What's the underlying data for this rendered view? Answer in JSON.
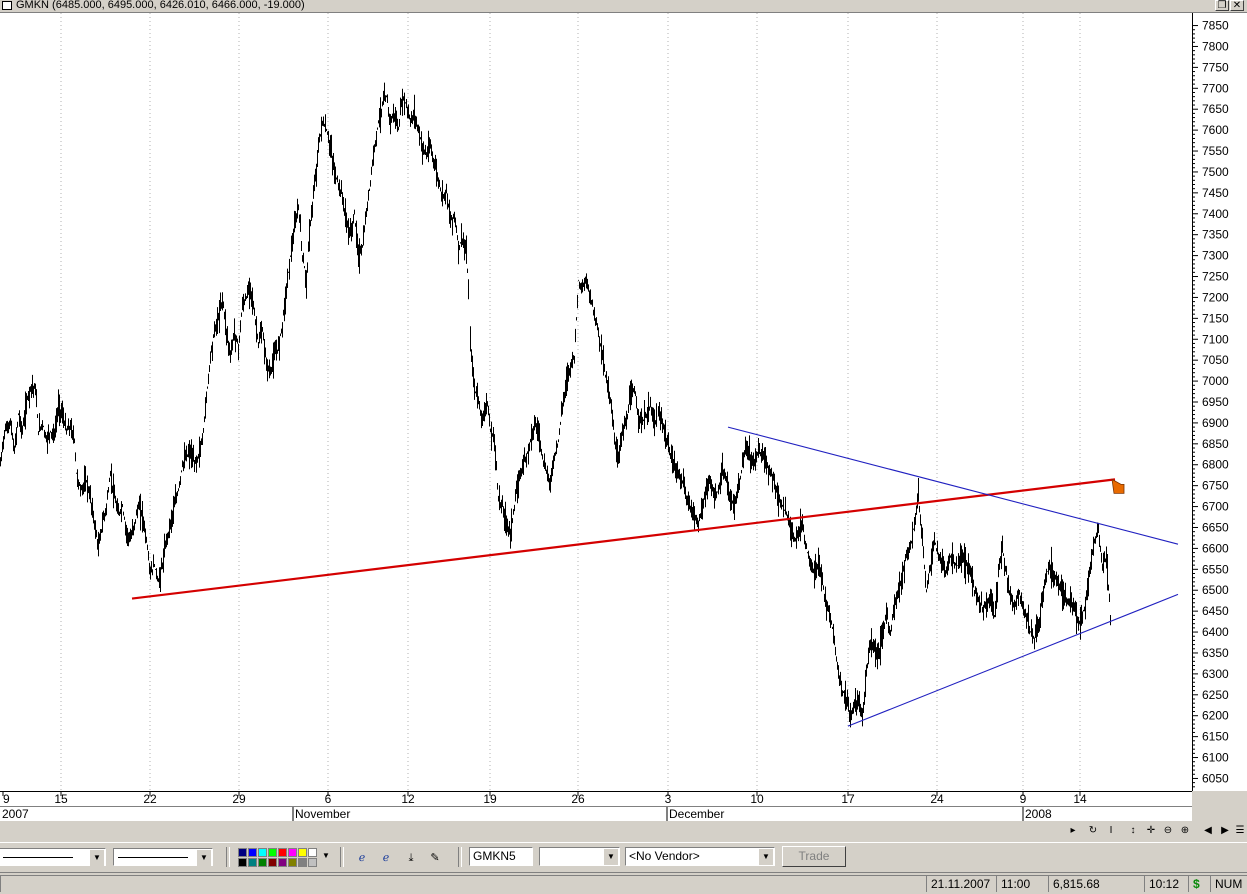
{
  "window": {
    "title": "GMKN (6485.000, 6495.000, 6426.010, 6466.000, -19.000)",
    "restore_glyph": "❐",
    "close_glyph": "✕"
  },
  "chart_data": {
    "type": "candlestick",
    "symbol": "GMKN",
    "ohlc_header": {
      "open": 6485.0,
      "high": 6495.0,
      "low": 6426.01,
      "close": 6466.0,
      "change": -19.0
    },
    "ylim": [
      6020,
      7880
    ],
    "y_ticks": [
      7850,
      7800,
      7750,
      7700,
      7650,
      7600,
      7550,
      7500,
      7450,
      7400,
      7350,
      7300,
      7250,
      7200,
      7150,
      7100,
      7050,
      7000,
      6950,
      6900,
      6850,
      6800,
      6750,
      6700,
      6650,
      6600,
      6550,
      6500,
      6450,
      6400,
      6350,
      6300,
      6250,
      6200,
      6150,
      6100,
      6050
    ],
    "x_tick_labels": [
      "9",
      "15",
      "22",
      "29",
      "6",
      "12",
      "19",
      "26",
      "3",
      "10",
      "17",
      "24",
      "9",
      "14"
    ],
    "x_group_labels": [
      "2007",
      "November",
      "December",
      "2008"
    ],
    "grid": "vertical dotted",
    "price_path": [
      [
        0,
        6800
      ],
      [
        4,
        6880
      ],
      [
        10,
        6900
      ],
      [
        14,
        6830
      ],
      [
        18,
        6920
      ],
      [
        22,
        6880
      ],
      [
        27,
        6960
      ],
      [
        31,
        6990
      ],
      [
        35,
        6980
      ],
      [
        38,
        6880
      ],
      [
        42,
        6900
      ],
      [
        46,
        6860
      ],
      [
        50,
        6880
      ],
      [
        54,
        6870
      ],
      [
        58,
        6940
      ],
      [
        62,
        6920
      ],
      [
        66,
        6880
      ],
      [
        70,
        6890
      ],
      [
        74,
        6860
      ],
      [
        76,
        6780
      ],
      [
        80,
        6740
      ],
      [
        86,
        6760
      ],
      [
        90,
        6720
      ],
      [
        94,
        6660
      ],
      [
        98,
        6600
      ],
      [
        102,
        6660
      ],
      [
        106,
        6700
      ],
      [
        110,
        6780
      ],
      [
        114,
        6720
      ],
      [
        118,
        6680
      ],
      [
        122,
        6700
      ],
      [
        126,
        6640
      ],
      [
        130,
        6620
      ],
      [
        134,
        6660
      ],
      [
        138,
        6700
      ],
      [
        142,
        6680
      ],
      [
        146,
        6620
      ],
      [
        150,
        6540
      ],
      [
        154,
        6560
      ],
      [
        158,
        6520
      ],
      [
        162,
        6560
      ],
      [
        166,
        6620
      ],
      [
        170,
        6660
      ],
      [
        174,
        6700
      ],
      [
        178,
        6740
      ],
      [
        182,
        6800
      ],
      [
        186,
        6820
      ],
      [
        190,
        6830
      ],
      [
        194,
        6800
      ],
      [
        198,
        6820
      ],
      [
        202,
        6860
      ],
      [
        206,
        6960
      ],
      [
        210,
        7060
      ],
      [
        214,
        7120
      ],
      [
        218,
        7150
      ],
      [
        222,
        7200
      ],
      [
        226,
        7120
      ],
      [
        230,
        7060
      ],
      [
        234,
        7120
      ],
      [
        238,
        7080
      ],
      [
        242,
        7180
      ],
      [
        246,
        7200
      ],
      [
        250,
        7230
      ],
      [
        254,
        7160
      ],
      [
        258,
        7090
      ],
      [
        262,
        7120
      ],
      [
        266,
        7040
      ],
      [
        270,
        7020
      ],
      [
        274,
        7060
      ],
      [
        278,
        7080
      ],
      [
        282,
        7140
      ],
      [
        286,
        7220
      ],
      [
        290,
        7300
      ],
      [
        294,
        7360
      ],
      [
        298,
        7420
      ],
      [
        302,
        7300
      ],
      [
        306,
        7240
      ],
      [
        310,
        7380
      ],
      [
        314,
        7460
      ],
      [
        318,
        7560
      ],
      [
        322,
        7620
      ],
      [
        326,
        7600
      ],
      [
        330,
        7560
      ],
      [
        334,
        7500
      ],
      [
        338,
        7470
      ],
      [
        342,
        7440
      ],
      [
        346,
        7380
      ],
      [
        350,
        7350
      ],
      [
        354,
        7400
      ],
      [
        358,
        7300
      ],
      [
        362,
        7320
      ],
      [
        366,
        7400
      ],
      [
        370,
        7480
      ],
      [
        374,
        7560
      ],
      [
        378,
        7620
      ],
      [
        382,
        7660
      ],
      [
        386,
        7680
      ],
      [
        390,
        7620
      ],
      [
        394,
        7640
      ],
      [
        398,
        7600
      ],
      [
        402,
        7680
      ],
      [
        406,
        7660
      ],
      [
        410,
        7620
      ],
      [
        414,
        7640
      ],
      [
        418,
        7600
      ],
      [
        422,
        7560
      ],
      [
        426,
        7540
      ],
      [
        430,
        7560
      ],
      [
        434,
        7520
      ],
      [
        438,
        7480
      ],
      [
        442,
        7440
      ],
      [
        446,
        7460
      ],
      [
        450,
        7380
      ],
      [
        454,
        7400
      ],
      [
        458,
        7320
      ],
      [
        462,
        7340
      ],
      [
        466,
        7300
      ],
      [
        468,
        7220
      ],
      [
        470,
        7090
      ],
      [
        474,
        6980
      ],
      [
        478,
        6960
      ],
      [
        482,
        6900
      ],
      [
        486,
        6960
      ],
      [
        490,
        6880
      ],
      [
        494,
        6860
      ],
      [
        498,
        6720
      ],
      [
        502,
        6700
      ],
      [
        506,
        6660
      ],
      [
        510,
        6640
      ],
      [
        514,
        6700
      ],
      [
        518,
        6760
      ],
      [
        522,
        6800
      ],
      [
        526,
        6820
      ],
      [
        530,
        6860
      ],
      [
        534,
        6900
      ],
      [
        538,
        6880
      ],
      [
        542,
        6820
      ],
      [
        546,
        6780
      ],
      [
        550,
        6760
      ],
      [
        554,
        6820
      ],
      [
        558,
        6860
      ],
      [
        562,
        6940
      ],
      [
        566,
        7000
      ],
      [
        570,
        7040
      ],
      [
        574,
        7060
      ],
      [
        578,
        7240
      ],
      [
        582,
        7220
      ],
      [
        586,
        7240
      ],
      [
        590,
        7200
      ],
      [
        594,
        7160
      ],
      [
        598,
        7120
      ],
      [
        602,
        7060
      ],
      [
        606,
        7000
      ],
      [
        610,
        6960
      ],
      [
        614,
        6860
      ],
      [
        618,
        6820
      ],
      [
        622,
        6880
      ],
      [
        626,
        6900
      ],
      [
        630,
        6960
      ],
      [
        634,
        6980
      ],
      [
        638,
        6920
      ],
      [
        642,
        6900
      ],
      [
        646,
        6920
      ],
      [
        650,
        6940
      ],
      [
        654,
        6900
      ],
      [
        658,
        6920
      ],
      [
        662,
        6900
      ],
      [
        666,
        6860
      ],
      [
        670,
        6820
      ],
      [
        674,
        6800
      ],
      [
        678,
        6780
      ],
      [
        682,
        6760
      ],
      [
        686,
        6720
      ],
      [
        690,
        6700
      ],
      [
        694,
        6680
      ],
      [
        698,
        6660
      ],
      [
        702,
        6700
      ],
      [
        706,
        6740
      ],
      [
        710,
        6760
      ],
      [
        714,
        6720
      ],
      [
        718,
        6740
      ],
      [
        722,
        6780
      ],
      [
        726,
        6760
      ],
      [
        730,
        6720
      ],
      [
        734,
        6700
      ],
      [
        738,
        6740
      ],
      [
        742,
        6800
      ],
      [
        746,
        6840
      ],
      [
        750,
        6820
      ],
      [
        754,
        6800
      ],
      [
        758,
        6840
      ],
      [
        762,
        6820
      ],
      [
        766,
        6800
      ],
      [
        770,
        6780
      ],
      [
        774,
        6760
      ],
      [
        778,
        6720
      ],
      [
        782,
        6700
      ],
      [
        786,
        6680
      ],
      [
        790,
        6660
      ],
      [
        794,
        6620
      ],
      [
        798,
        6640
      ],
      [
        802,
        6660
      ],
      [
        806,
        6600
      ],
      [
        810,
        6560
      ],
      [
        814,
        6540
      ],
      [
        818,
        6560
      ],
      [
        822,
        6520
      ],
      [
        826,
        6460
      ],
      [
        830,
        6440
      ],
      [
        834,
        6380
      ],
      [
        838,
        6300
      ],
      [
        842,
        6260
      ],
      [
        846,
        6240
      ],
      [
        850,
        6200
      ],
      [
        854,
        6220
      ],
      [
        858,
        6240
      ],
      [
        862,
        6200
      ],
      [
        866,
        6300
      ],
      [
        870,
        6380
      ],
      [
        874,
        6360
      ],
      [
        878,
        6340
      ],
      [
        882,
        6400
      ],
      [
        886,
        6440
      ],
      [
        890,
        6400
      ],
      [
        894,
        6460
      ],
      [
        898,
        6500
      ],
      [
        902,
        6540
      ],
      [
        906,
        6580
      ],
      [
        910,
        6600
      ],
      [
        914,
        6660
      ],
      [
        918,
        6720
      ],
      [
        922,
        6620
      ],
      [
        926,
        6500
      ],
      [
        930,
        6560
      ],
      [
        934,
        6620
      ],
      [
        938,
        6580
      ],
      [
        942,
        6560
      ],
      [
        946,
        6540
      ],
      [
        950,
        6580
      ],
      [
        954,
        6560
      ],
      [
        958,
        6560
      ],
      [
        962,
        6580
      ],
      [
        966,
        6560
      ],
      [
        970,
        6540
      ],
      [
        974,
        6500
      ],
      [
        978,
        6480
      ],
      [
        982,
        6460
      ],
      [
        986,
        6460
      ],
      [
        990,
        6480
      ],
      [
        994,
        6440
      ],
      [
        998,
        6540
      ],
      [
        1002,
        6600
      ],
      [
        1006,
        6540
      ],
      [
        1010,
        6480
      ],
      [
        1014,
        6460
      ],
      [
        1018,
        6500
      ],
      [
        1022,
        6460
      ],
      [
        1026,
        6440
      ],
      [
        1030,
        6400
      ],
      [
        1034,
        6380
      ],
      [
        1038,
        6420
      ],
      [
        1042,
        6480
      ],
      [
        1046,
        6540
      ],
      [
        1050,
        6560
      ],
      [
        1054,
        6540
      ],
      [
        1058,
        6520
      ],
      [
        1062,
        6500
      ],
      [
        1066,
        6480
      ],
      [
        1070,
        6460
      ],
      [
        1074,
        6460
      ],
      [
        1078,
        6420
      ],
      [
        1082,
        6440
      ],
      [
        1086,
        6480
      ],
      [
        1090,
        6560
      ],
      [
        1094,
        6620
      ],
      [
        1098,
        6640
      ],
      [
        1102,
        6560
      ],
      [
        1106,
        6580
      ],
      [
        1110,
        6440
      ]
    ],
    "trendlines": [
      {
        "name": "red-support",
        "color": "#d40000",
        "from": [
          132,
          6480
        ],
        "to": [
          1115,
          6765
        ]
      },
      {
        "name": "blue-upper",
        "color": "#2020c0",
        "from": [
          728,
          6890
        ],
        "to": [
          1178,
          6610
        ]
      },
      {
        "name": "blue-lower",
        "color": "#2020c0",
        "from": [
          848,
          6175
        ],
        "to": [
          1178,
          6490
        ]
      }
    ],
    "colors": {
      "bars": "#000000",
      "red_line": "#d40000",
      "blue_line": "#2020c0",
      "marker": "#e86a00",
      "grid": "#b0b0b0"
    }
  },
  "toolbar": {
    "symbol_value": "GMKN5",
    "vendor_value": "<No Vendor>",
    "trade_label": "Trade",
    "palette": [
      "#000080",
      "#0000ff",
      "#00ffff",
      "#00ff00",
      "#ff0000",
      "#ff00ff",
      "#ffff00",
      "#ffffff",
      "#000000",
      "#008080",
      "#008000",
      "#800000",
      "#800080",
      "#808000",
      "#808080",
      "#c0c0c0"
    ]
  },
  "status": {
    "left": "",
    "date": "21.11.2007",
    "time": "11:00",
    "value": "6,815.68",
    "clock": "10:12",
    "currency": "$",
    "num": "NUM"
  }
}
